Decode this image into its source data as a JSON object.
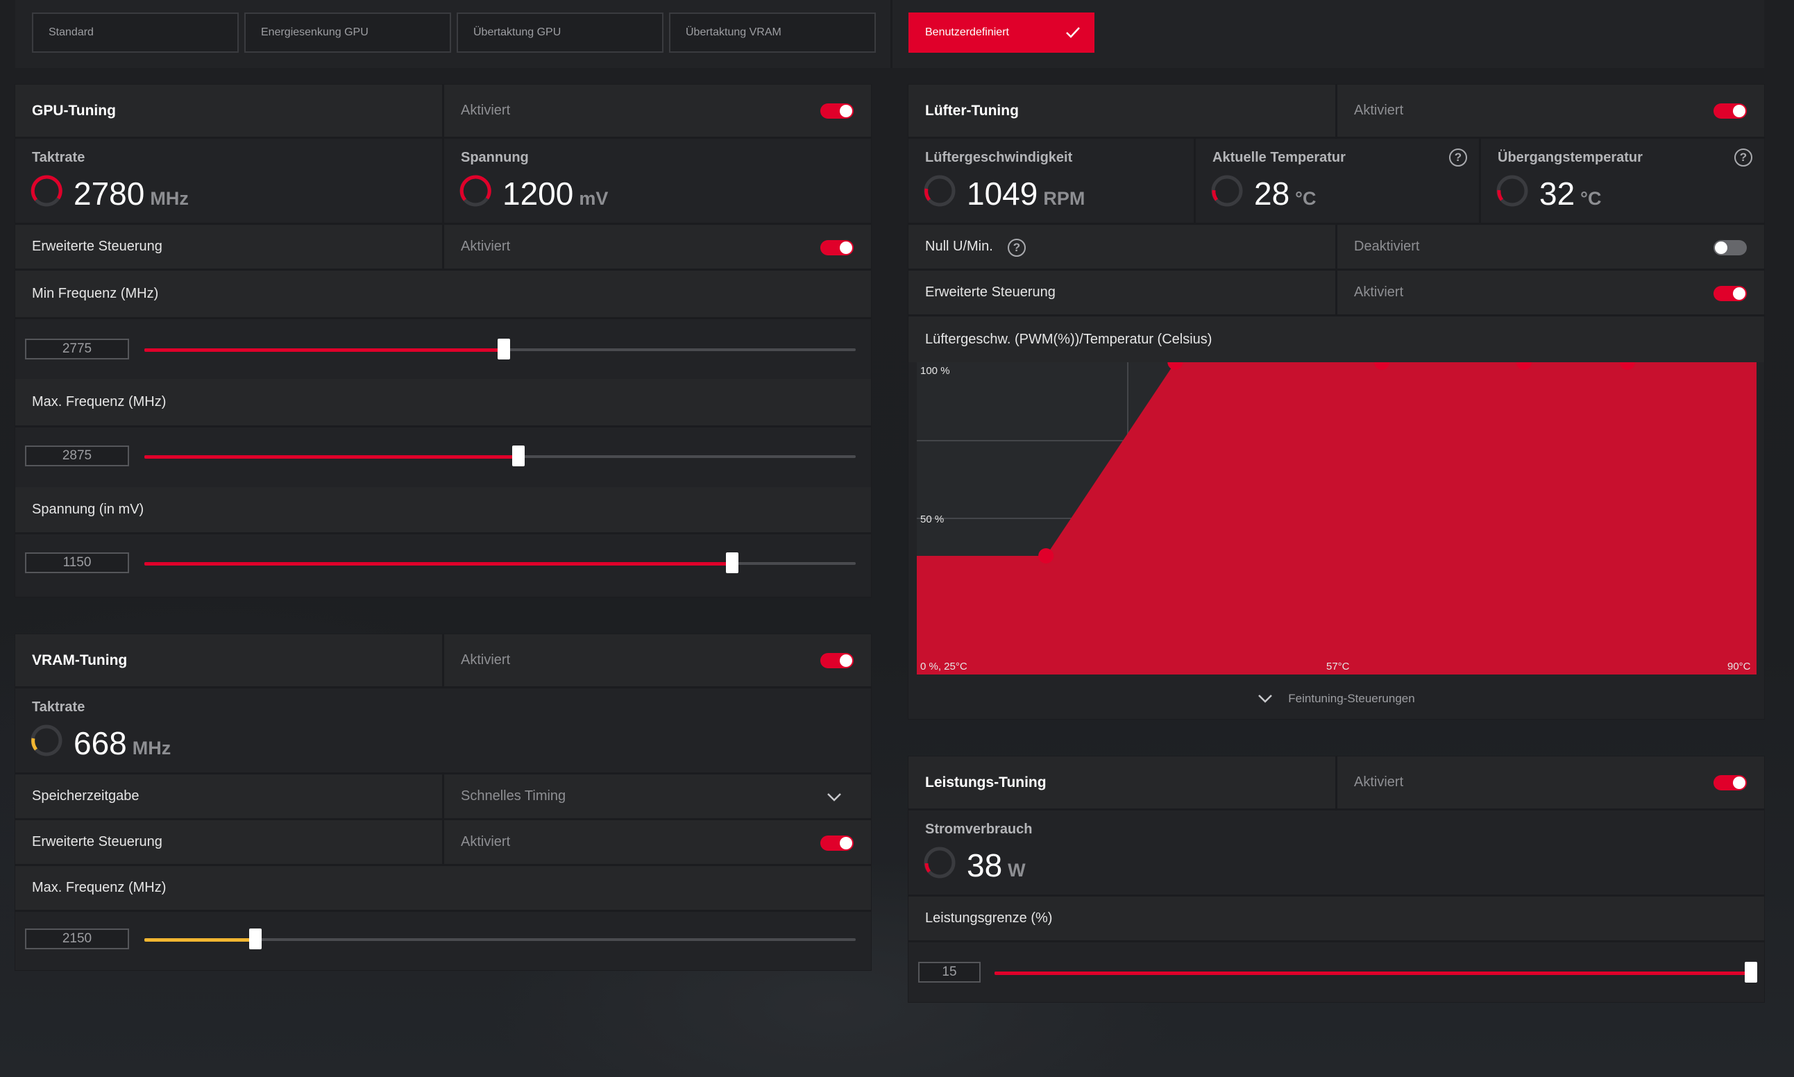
{
  "presets": {
    "items": [
      {
        "label": "Standard"
      },
      {
        "label": "Energiesenkung GPU"
      },
      {
        "label": "Übertaktung GPU"
      },
      {
        "label": "Übertaktung VRAM"
      }
    ],
    "custom": {
      "label": "Benutzerdefiniert",
      "active": true
    }
  },
  "gpu": {
    "title": "GPU-Tuning",
    "status": "Aktiviert",
    "clock": {
      "label": "Taktrate",
      "value": "2780",
      "unit": "MHz"
    },
    "voltage": {
      "label": "Spannung",
      "value": "1200",
      "unit": "mV"
    },
    "advanced": {
      "label": "Erweiterte Steuerung",
      "status": "Aktiviert"
    },
    "min_freq": {
      "label": "Min Frequenz (MHz)",
      "value": "2775",
      "fraction": 0.505
    },
    "max_freq": {
      "label": "Max. Frequenz (MHz)",
      "value": "2875",
      "fraction": 0.526
    },
    "volt_slider": {
      "label": "Spannung (in mV)",
      "value": "1150",
      "fraction": 0.826
    }
  },
  "vram": {
    "title": "VRAM-Tuning",
    "status": "Aktiviert",
    "clock": {
      "label": "Taktrate",
      "value": "668",
      "unit": "MHz"
    },
    "timing": {
      "label": "Speicherzeitgabe",
      "value": "Schnelles Timing"
    },
    "advanced": {
      "label": "Erweiterte Steuerung",
      "status": "Aktiviert"
    },
    "max_freq": {
      "label": "Max. Frequenz (MHz)",
      "value": "2150",
      "fraction": 0.156
    }
  },
  "fan": {
    "title": "Lüfter-Tuning",
    "status": "Aktiviert",
    "speed": {
      "label": "Lüftergeschwindigkeit",
      "value": "1049",
      "unit": "RPM"
    },
    "temp": {
      "label": "Aktuelle Temperatur",
      "value": "28",
      "unit": "°C"
    },
    "junction": {
      "label": "Übergangstemperatur",
      "value": "32",
      "unit": "°C"
    },
    "zero_rpm": {
      "label": "Null U/Min.",
      "status": "Deaktiviert"
    },
    "advanced": {
      "label": "Erweiterte Steuerung",
      "status": "Aktiviert"
    },
    "curve_title": "Lüftergeschw. (PWM(%))/Temperatur (Celsius)",
    "fine_tuning": "Feintuning-Steuerungen"
  },
  "chart_data": {
    "type": "area",
    "title": "Lüftergeschw. (PWM(%))/Temperatur (Celsius)",
    "y_tick_labels": [
      "100 %",
      "50 %"
    ],
    "x_tick_labels": [
      "0 %, 25°C",
      "57°C",
      "90°C"
    ],
    "xlim": [
      25,
      90
    ],
    "ylim": [
      0,
      100
    ],
    "series": [
      {
        "x": [
          25,
          35,
          45,
          61,
          72,
          80,
          90
        ],
        "y": [
          38,
          38,
          100,
          100,
          100,
          100,
          100
        ]
      }
    ],
    "points": [
      {
        "x": 35,
        "y": 38
      },
      {
        "x": 45,
        "y": 100
      },
      {
        "x": 61,
        "y": 100
      },
      {
        "x": 72,
        "y": 100
      },
      {
        "x": 80,
        "y": 100
      }
    ],
    "fill_color": "#c8102e"
  },
  "power": {
    "title": "Leistungs-Tuning",
    "status": "Aktiviert",
    "consumption": {
      "label": "Stromverbrauch",
      "value": "38",
      "unit": "W"
    },
    "limit": {
      "label": "Leistungsgrenze (%)",
      "value": "15",
      "fraction": 1.0
    }
  },
  "colors": {
    "accent": "#e0002a",
    "vram_accent": "#f2b631"
  }
}
